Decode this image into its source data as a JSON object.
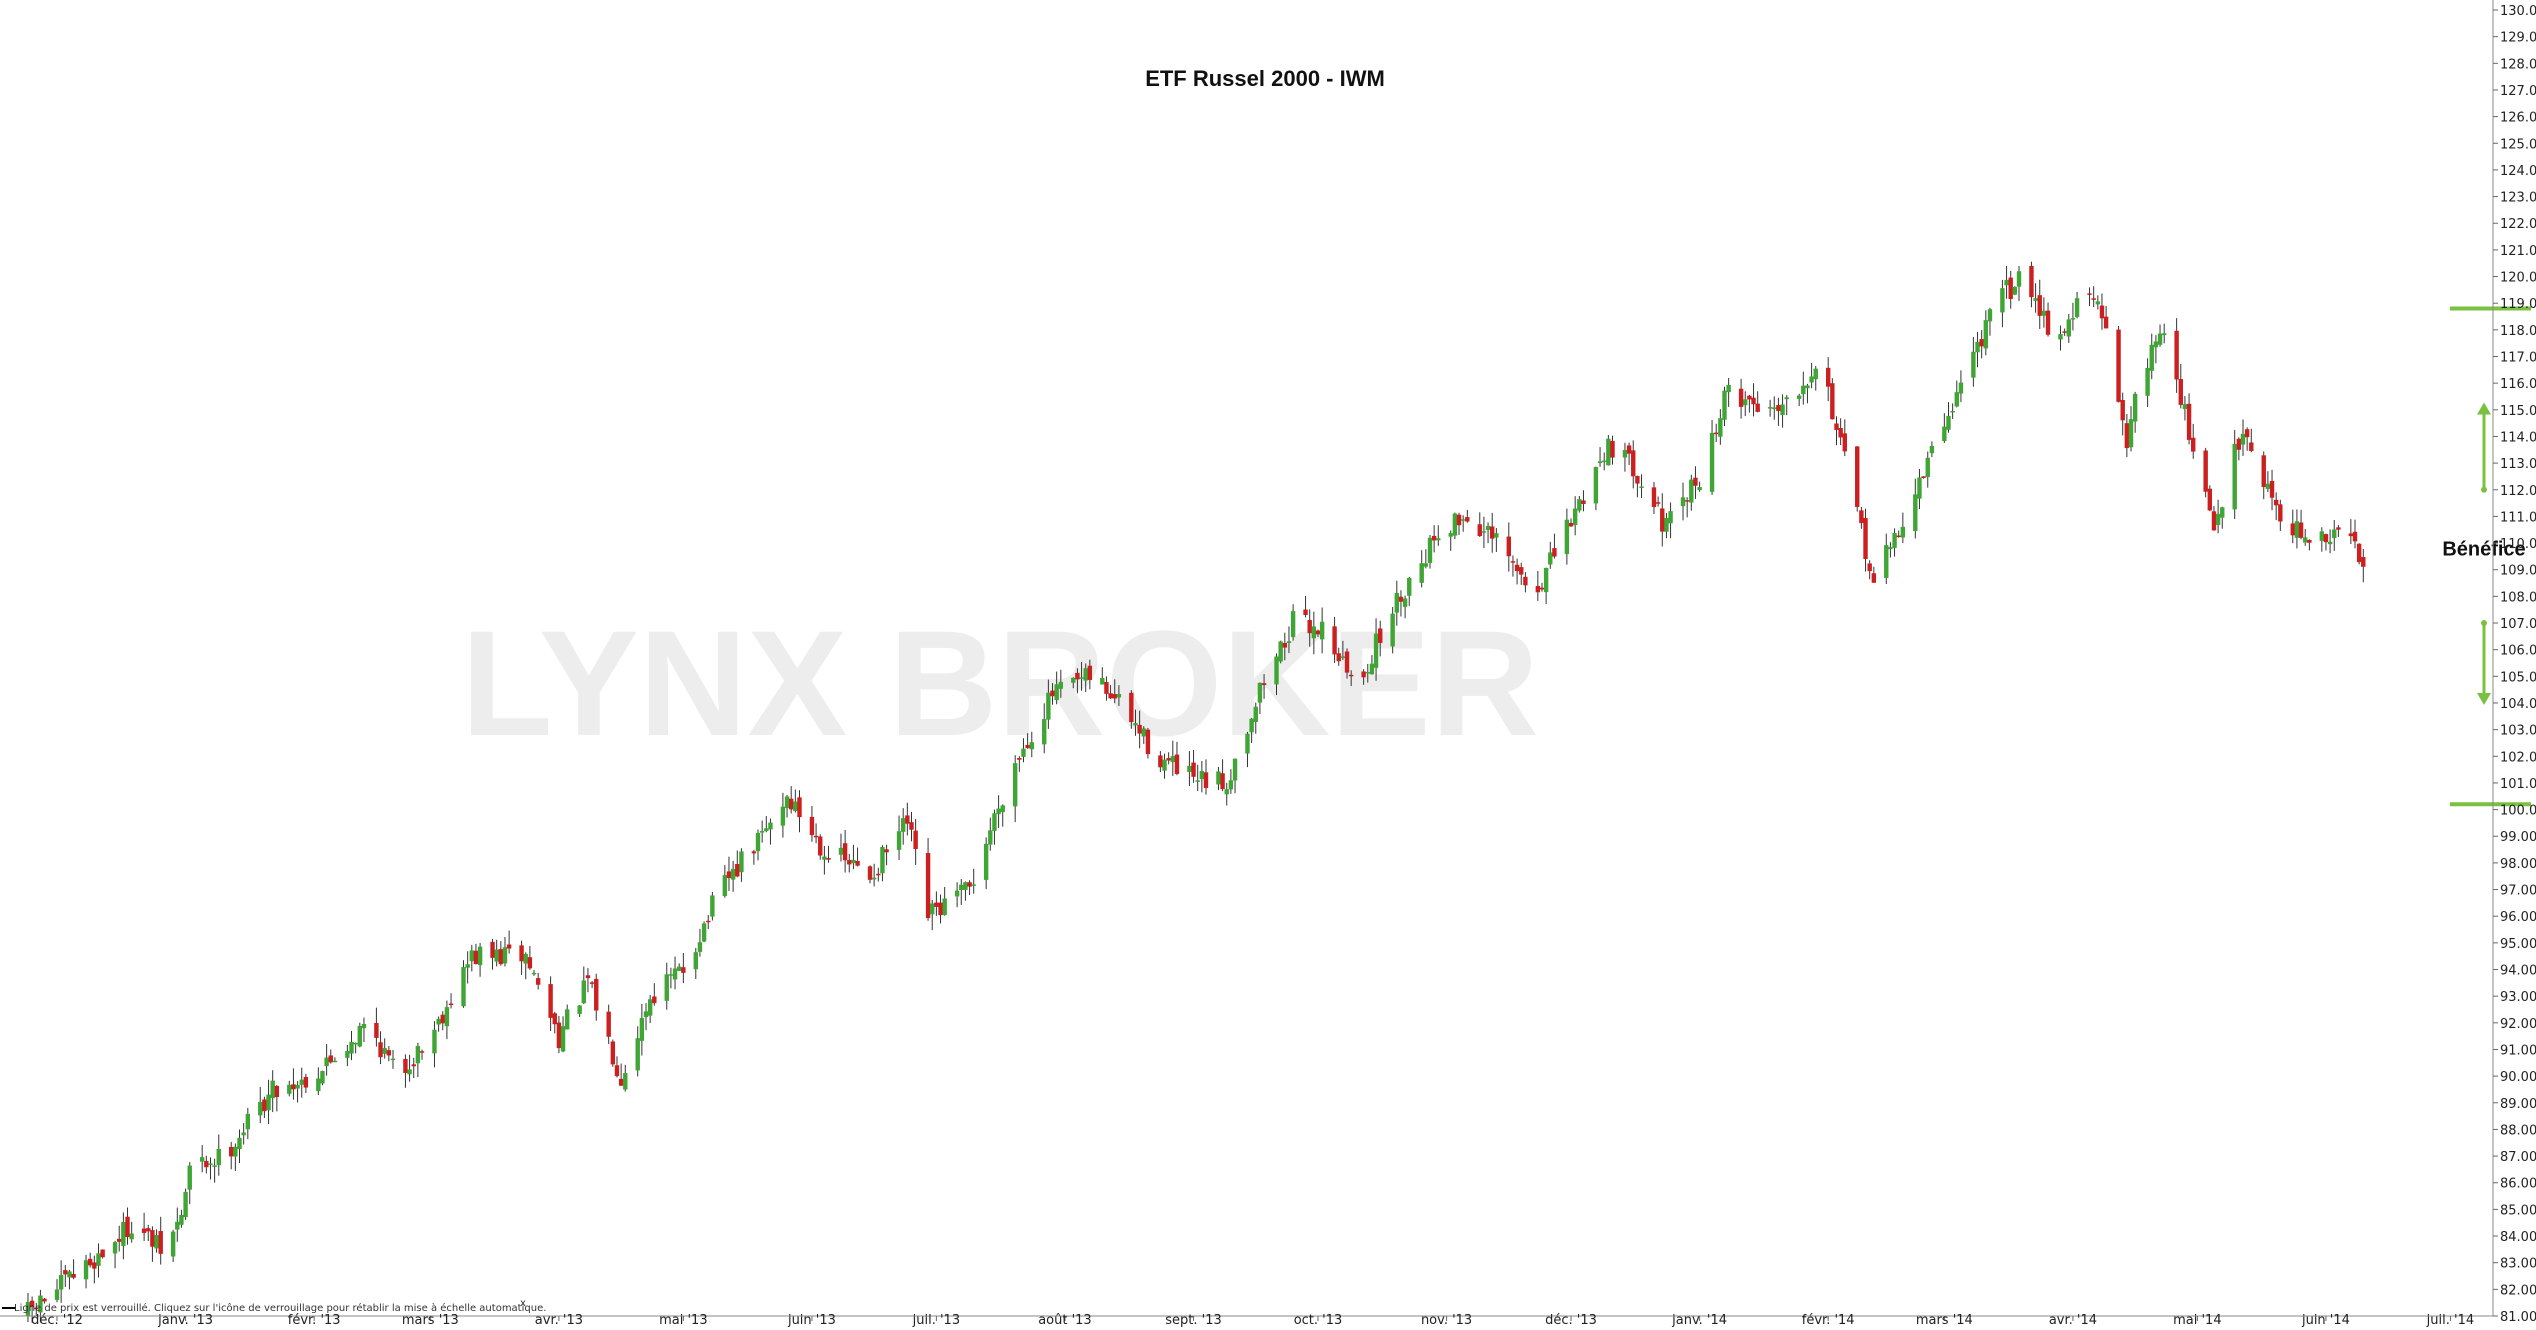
{
  "chart_data": {
    "type": "candlestick",
    "title": "ETF Russel 2000 - IWM",
    "watermark": "LYNX BROKER",
    "status_text": "Ligne de prix est verrouillé. Cliquez sur l'icône de verrouillage pour rétablir la mise à échelle automatique.",
    "status_close": "x",
    "ylim": [
      81,
      130
    ],
    "y_ticks": [
      "81.00",
      "82.00",
      "83.00",
      "84.00",
      "85.00",
      "86.00",
      "87.00",
      "88.00",
      "89.00",
      "90.00",
      "91.00",
      "92.00",
      "93.00",
      "94.00",
      "95.00",
      "96.00",
      "97.00",
      "98.00",
      "99.00",
      "100.00",
      "101.00",
      "102.00",
      "103.00",
      "104.00",
      "105.00",
      "106.00",
      "107.00",
      "108.00",
      "109.00",
      "110.00",
      "111.00",
      "112.00",
      "113.00",
      "114.00",
      "115.00",
      "116.00",
      "117.00",
      "118.00",
      "119.00",
      "120.00",
      "121.00",
      "122.00",
      "123.00",
      "124.00",
      "125.00",
      "126.00",
      "127.00",
      "128.00",
      "129.00",
      "130.00"
    ],
    "x_ticks": [
      "déc. '12",
      "janv. '13",
      "févr. '13",
      "mars '13",
      "avr. '13",
      "mai '13",
      "juin '13",
      "juil. '13",
      "août '13",
      "sept. '13",
      "oct. '13",
      "nov. '13",
      "déc. '13",
      "janv. '14",
      "févr. '14",
      "mars '14",
      "avr. '14",
      "mai '14",
      "juin '14",
      "juil. '14"
    ],
    "x_tick_days": [
      0,
      31,
      62,
      90,
      121,
      151,
      182,
      212,
      243,
      274,
      304,
      335,
      365,
      396,
      427,
      455,
      486,
      516,
      547,
      577
    ],
    "colors": {
      "up": "#3fa535",
      "down": "#cc1f1f",
      "annotation": "#7ac142",
      "wick": "#333333"
    },
    "key_points": [
      {
        "day": -8,
        "value": 81.0
      },
      {
        "day": 4,
        "value": 82.5
      },
      {
        "day": 12,
        "value": 83.5
      },
      {
        "day": 18,
        "value": 84.5
      },
      {
        "day": 26,
        "value": 83.3
      },
      {
        "day": 30,
        "value": 84.8
      },
      {
        "day": 32,
        "value": 86.5
      },
      {
        "day": 40,
        "value": 87.0
      },
      {
        "day": 52,
        "value": 89.5
      },
      {
        "day": 62,
        "value": 90.0
      },
      {
        "day": 75,
        "value": 92.0
      },
      {
        "day": 82,
        "value": 90.0
      },
      {
        "day": 90,
        "value": 91.5
      },
      {
        "day": 100,
        "value": 94.5
      },
      {
        "day": 113,
        "value": 94.5
      },
      {
        "day": 121,
        "value": 91.5
      },
      {
        "day": 128,
        "value": 93.5
      },
      {
        "day": 136,
        "value": 90.0
      },
      {
        "day": 143,
        "value": 93.0
      },
      {
        "day": 151,
        "value": 94.0
      },
      {
        "day": 160,
        "value": 97.0
      },
      {
        "day": 170,
        "value": 99.0
      },
      {
        "day": 176,
        "value": 100.5
      },
      {
        "day": 185,
        "value": 98.5
      },
      {
        "day": 196,
        "value": 97.5
      },
      {
        "day": 205,
        "value": 99.5
      },
      {
        "day": 210,
        "value": 96.0
      },
      {
        "day": 220,
        "value": 97.0
      },
      {
        "day": 230,
        "value": 101.5
      },
      {
        "day": 240,
        "value": 104.3
      },
      {
        "day": 250,
        "value": 105.0
      },
      {
        "day": 256,
        "value": 104.0
      },
      {
        "day": 265,
        "value": 102.0
      },
      {
        "day": 275,
        "value": 101.0
      },
      {
        "day": 282,
        "value": 101.0
      },
      {
        "day": 290,
        "value": 104.5
      },
      {
        "day": 298,
        "value": 107.0
      },
      {
        "day": 306,
        "value": 106.8
      },
      {
        "day": 313,
        "value": 104.5
      },
      {
        "day": 322,
        "value": 107.5
      },
      {
        "day": 333,
        "value": 110.5
      },
      {
        "day": 340,
        "value": 111.0
      },
      {
        "day": 348,
        "value": 109.8
      },
      {
        "day": 356,
        "value": 108.0
      },
      {
        "day": 364,
        "value": 110.5
      },
      {
        "day": 374,
        "value": 113.8
      },
      {
        "day": 382,
        "value": 112.5
      },
      {
        "day": 388,
        "value": 110.5
      },
      {
        "day": 396,
        "value": 112.5
      },
      {
        "day": 403,
        "value": 115.8
      },
      {
        "day": 411,
        "value": 115.0
      },
      {
        "day": 418,
        "value": 115.5
      },
      {
        "day": 425,
        "value": 117.0
      },
      {
        "day": 431,
        "value": 113.0
      },
      {
        "day": 438,
        "value": 108.5
      },
      {
        "day": 447,
        "value": 111.5
      },
      {
        "day": 455,
        "value": 114.5
      },
      {
        "day": 463,
        "value": 117.5
      },
      {
        "day": 470,
        "value": 119.5
      },
      {
        "day": 475,
        "value": 120.0
      },
      {
        "day": 482,
        "value": 117.5
      },
      {
        "day": 489,
        "value": 119.5
      },
      {
        "day": 493,
        "value": 118.5
      },
      {
        "day": 499,
        "value": 114.0
      },
      {
        "day": 505,
        "value": 117.5
      },
      {
        "day": 509,
        "value": 118.0
      },
      {
        "day": 514,
        "value": 114.0
      },
      {
        "day": 520,
        "value": 110.5
      },
      {
        "day": 527,
        "value": 114.5
      },
      {
        "day": 533,
        "value": 112.0
      },
      {
        "day": 539,
        "value": 110.5
      },
      {
        "day": 546,
        "value": 110.0
      },
      {
        "day": 551,
        "value": 110.5
      },
      {
        "day": 556,
        "value": 109.5
      }
    ],
    "annotation": {
      "label": "Bénéfice",
      "upper_level": 118.8,
      "lower_level": 100.2,
      "arrow_up": [
        112.0,
        115.2
      ],
      "arrow_down": [
        107.0,
        104.0
      ]
    }
  }
}
